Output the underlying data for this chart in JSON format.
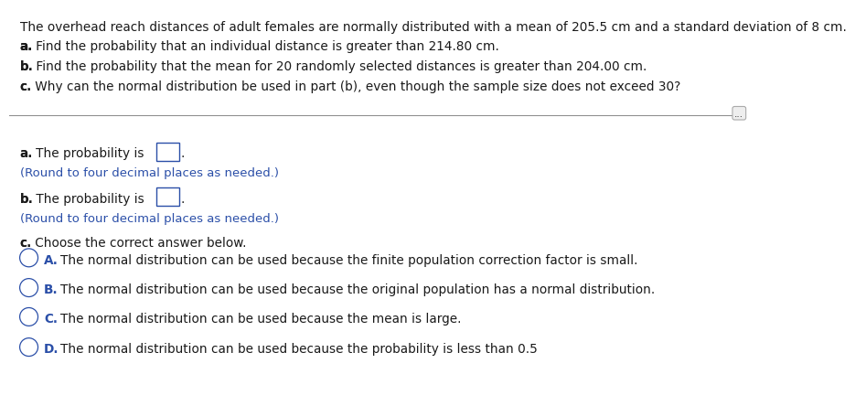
{
  "background_color": "#ffffff",
  "intro_text": "The overhead reach distances of adult females are normally distributed with a mean of 205.5 cm and a standard deviation of 8 cm.",
  "part_a_intro_bold": "a.",
  "part_a_intro_rest": " Find the probability that an individual distance is greater than 214.80 cm.",
  "part_b_intro_bold": "b.",
  "part_b_intro_rest": " Find the probability that the mean for 20 randomly selected distances is greater than 204.00 cm.",
  "part_c_intro_bold": "c.",
  "part_c_intro_rest": " Why can the normal distribution be used in part (b), even though the sample size does not exceed 30?",
  "dots_text": "...",
  "part_a_bold": "a.",
  "part_a_rest": " The probability is",
  "part_a_hint": "(Round to four decimal places as needed.)",
  "part_b_bold": "b.",
  "part_b_rest": " The probability is",
  "part_b_hint": "(Round to four decimal places as needed.)",
  "part_c_bold": "c.",
  "part_c_rest": " Choose the correct answer below.",
  "option_A_label": "A.",
  "option_A_text": "  The normal distribution can be used because the finite population correction factor is small.",
  "option_B_label": "B.",
  "option_B_text": "  The normal distribution can be used because the original population has a normal distribution.",
  "option_C_label": "C.",
  "option_C_text": "  The normal distribution can be used because the mean is large.",
  "option_D_label": "D.",
  "option_D_text": "  The normal distribution can be used because the probability is less than 0.5",
  "text_color": "#1a1a1a",
  "hint_color": "#2b4fa8",
  "circle_color": "#2b4fa8",
  "option_label_color": "#2b4fa8",
  "box_border_color": "#2b4fa8",
  "font_size_intro": 9.8,
  "font_size_body": 9.8,
  "font_size_hint": 9.5
}
